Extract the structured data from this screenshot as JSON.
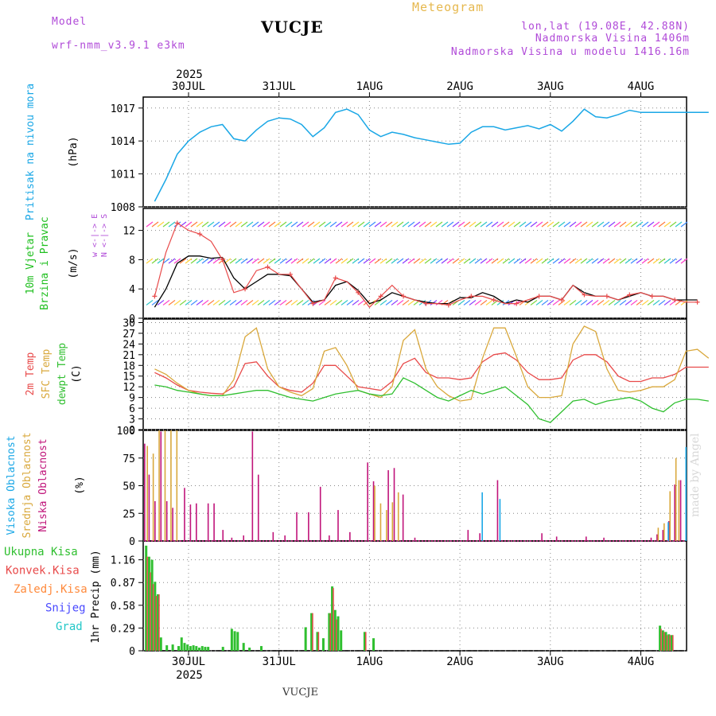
{
  "header": {
    "model_label": "Model",
    "model_name": "wrf-nmm_v3.9.1 e3km",
    "station": "VUCJE",
    "meteogram": "Meteogram",
    "coords": "lon,lat (19.08E, 42.88N)",
    "elevation": "Nadmorska Visina 1406m",
    "model_elevation": "Nadmorska Visina u modelu 1416.16m",
    "footer_station": "VUCJE",
    "watermark": "made by Angel"
  },
  "colors": {
    "pressure": "#1aa7e6",
    "temp2m": "#e84a4a",
    "sfc": "#d9a83c",
    "dewpt": "#2fbf2f",
    "high": "#1aa7e6",
    "mid": "#d9a83c",
    "low": "#c0147a",
    "precip": "#2fbf2f",
    "conv": "#e84a4a"
  },
  "chart_data": [
    {
      "type": "line",
      "title": "Pritisak na nivou mora",
      "ylabel": "(hPa)",
      "ylim": [
        1008,
        1018
      ],
      "yticks": [
        1008,
        1011,
        1014,
        1017
      ],
      "x_top_year": "2025",
      "x_top_labels": [
        "30JUL",
        "31JUL",
        "1AUG",
        "2AUG",
        "3AUG",
        "4AUG"
      ],
      "x_bottom_labels": [
        "30JUL",
        "31JUL",
        "1AUG",
        "2AUG",
        "3AUG",
        "4AUG"
      ],
      "x_bottom_year": "2025",
      "x_hours": [
        0,
        3,
        6,
        9,
        12,
        15,
        18,
        21,
        24,
        27,
        30,
        33,
        36,
        39,
        42,
        45,
        48,
        51,
        54,
        57,
        60,
        63,
        66,
        69,
        72,
        75,
        78,
        81,
        84,
        87,
        90,
        93,
        96,
        99,
        102,
        105,
        108,
        111,
        114,
        117,
        120,
        123,
        126,
        129,
        132,
        135,
        138,
        141,
        144,
        147
      ],
      "series": [
        {
          "name": "MSLP",
          "values": [
            1008.5,
            1010.5,
            1012.8,
            1014.0,
            1014.8,
            1015.3,
            1015.5,
            1014.2,
            1014.0,
            1015.0,
            1015.8,
            1016.1,
            1016.0,
            1015.5,
            1014.4,
            1015.2,
            1016.6,
            1016.9,
            1016.4,
            1015.0,
            1014.4,
            1014.8,
            1014.6,
            1014.3,
            1014.1,
            1013.9,
            1013.7,
            1013.8,
            1014.8,
            1015.3,
            1015.3,
            1015.0,
            1015.2,
            1015.4,
            1015.1,
            1015.5,
            1014.9,
            1015.8,
            1016.9,
            1016.2,
            1016.1,
            1016.4,
            1016.8,
            1016.6,
            1016.6,
            1016.6,
            1016.6,
            1016.6,
            1016.6,
            1016.6
          ]
        }
      ]
    },
    {
      "type": "line",
      "title": "10m Vjetar Brzina i Pravac",
      "ylabel": "(m/s)",
      "ylim": [
        0,
        15
      ],
      "yticks": [
        0,
        4,
        8,
        12
      ],
      "legend": [
        "w  <-|->  E",
        "N <-|-> S"
      ],
      "x_hours": [
        0,
        3,
        6,
        9,
        12,
        15,
        18,
        21,
        24,
        27,
        30,
        33,
        36,
        39,
        42,
        45,
        48,
        51,
        54,
        57,
        60,
        63,
        66,
        69,
        72,
        75,
        78,
        81,
        84,
        87,
        90,
        93,
        96,
        99,
        102,
        105,
        108,
        111,
        114,
        117,
        120,
        123,
        126,
        129,
        132,
        135,
        138,
        141,
        144
      ],
      "series": [
        {
          "name": "speed",
          "values": [
            1.5,
            4.0,
            7.5,
            8.5,
            8.5,
            8.2,
            8.3,
            5.5,
            4.0,
            5.0,
            6.0,
            6.0,
            5.8,
            4.0,
            2.2,
            2.5,
            4.5,
            5.0,
            3.8,
            2.0,
            2.5,
            3.5,
            3.0,
            2.5,
            2.2,
            2.0,
            2.0,
            2.8,
            2.8,
            3.5,
            3.0,
            2.0,
            2.5,
            2.2,
            3.0,
            3.0,
            2.5,
            4.5,
            3.5,
            3.0,
            3.0,
            2.5,
            3.0,
            3.5,
            3.0,
            3.0,
            2.5,
            2.5,
            2.5
          ]
        },
        {
          "name": "gust",
          "values": [
            3.0,
            9.0,
            13.0,
            12.0,
            11.5,
            10.5,
            8.0,
            3.5,
            4.0,
            6.5,
            7.0,
            6.0,
            6.0,
            4.0,
            2.0,
            2.5,
            5.5,
            5.0,
            3.5,
            1.5,
            3.0,
            4.5,
            3.0,
            2.5,
            2.0,
            2.0,
            1.8,
            2.5,
            3.0,
            3.0,
            2.5,
            2.0,
            2.0,
            2.5,
            3.0,
            3.0,
            2.5,
            4.5,
            3.2,
            3.0,
            3.0,
            2.5,
            3.2,
            3.5,
            3.0,
            3.0,
            2.5,
            2.2,
            2.2
          ]
        }
      ]
    },
    {
      "type": "line",
      "title": "2m Temp / SFC Temp / dewpt Temp",
      "ylabel": "(C)",
      "ylim": [
        0,
        31
      ],
      "yticks": [
        0,
        3,
        6,
        9,
        12,
        15,
        18,
        21,
        24,
        27,
        30
      ],
      "x_hours": [
        0,
        3,
        6,
        9,
        12,
        15,
        18,
        21,
        24,
        27,
        30,
        33,
        36,
        39,
        42,
        45,
        48,
        51,
        54,
        57,
        60,
        63,
        66,
        69,
        72,
        75,
        78,
        81,
        84,
        87,
        90,
        93,
        96,
        99,
        102,
        105,
        108,
        111,
        114,
        117,
        120,
        123,
        126,
        129,
        132,
        135,
        138,
        141,
        144,
        147
      ],
      "series": [
        {
          "name": "2m Temp",
          "values": [
            16.0,
            14.5,
            12.5,
            11.0,
            10.5,
            10.2,
            10.0,
            12.0,
            18.5,
            19.0,
            15.0,
            12.0,
            11.0,
            10.5,
            13.0,
            18.0,
            18.0,
            15.0,
            12.0,
            11.5,
            11.0,
            13.5,
            18.5,
            20.0,
            16.0,
            14.5,
            14.5,
            14.0,
            14.5,
            19.0,
            21.0,
            21.5,
            19.5,
            16.0,
            14.0,
            14.0,
            14.5,
            19.5,
            21.0,
            21.0,
            19.0,
            15.0,
            13.5,
            13.5,
            14.5,
            14.5,
            15.5,
            17.5,
            17.5,
            17.5
          ]
        },
        {
          "name": "SFC Temp",
          "values": [
            17.0,
            15.5,
            13.0,
            11.0,
            10.0,
            9.5,
            9.5,
            14.0,
            26.0,
            28.5,
            17.0,
            12.0,
            10.5,
            9.5,
            11.5,
            22.0,
            23.0,
            18.0,
            11.0,
            10.0,
            9.0,
            12.0,
            25.0,
            28.0,
            17.0,
            12.0,
            9.5,
            8.0,
            8.5,
            20.0,
            28.5,
            28.5,
            20.5,
            12.0,
            9.0,
            9.0,
            9.5,
            24.0,
            29.0,
            27.5,
            17.0,
            11.0,
            10.5,
            11.0,
            12.0,
            12.0,
            14.0,
            22.0,
            22.5,
            20.0
          ]
        },
        {
          "name": "dewpt Temp",
          "values": [
            12.5,
            12.0,
            11.0,
            10.5,
            10.0,
            9.5,
            9.5,
            10.0,
            10.5,
            11.0,
            11.0,
            10.0,
            9.0,
            8.5,
            8.0,
            9.0,
            10.0,
            10.5,
            11.0,
            10.0,
            9.5,
            10.0,
            14.5,
            13.0,
            11.0,
            9.0,
            8.0,
            9.5,
            11.0,
            10.0,
            11.0,
            12.0,
            9.5,
            7.0,
            3.0,
            2.0,
            5.0,
            8.0,
            8.5,
            7.0,
            8.0,
            8.5,
            9.0,
            8.0,
            6.0,
            5.0,
            7.5,
            8.5,
            8.5,
            8.0
          ]
        }
      ]
    },
    {
      "type": "bar",
      "title": "Visoka Oblacnost / Srednja Oblacnost / Niska Oblacnost",
      "ylabel": "(%)",
      "ylim": [
        0,
        100
      ],
      "yticks": [
        0,
        25,
        50,
        75,
        100
      ],
      "series": [
        {
          "name": "Niska Oblacnost",
          "points": [
            [
              0.5,
              88
            ],
            [
              2,
              60
            ],
            [
              4,
              36
            ],
            [
              6,
              99
            ],
            [
              8,
              36
            ],
            [
              10,
              30
            ],
            [
              14,
              48
            ],
            [
              16,
              33
            ],
            [
              18,
              34
            ],
            [
              22,
              34
            ],
            [
              24,
              34
            ],
            [
              27,
              10
            ],
            [
              30,
              3
            ],
            [
              34,
              5
            ],
            [
              37,
              99
            ],
            [
              39,
              60
            ],
            [
              44,
              8
            ],
            [
              48,
              5
            ],
            [
              52,
              26
            ],
            [
              56,
              26
            ],
            [
              60,
              49
            ],
            [
              63,
              5
            ],
            [
              66,
              28
            ],
            [
              70,
              8
            ],
            [
              76,
              71
            ],
            [
              78,
              54
            ],
            [
              83,
              64
            ],
            [
              85,
              66
            ],
            [
              88,
              42
            ],
            [
              92,
              3
            ],
            [
              110,
              10
            ],
            [
              114,
              7
            ],
            [
              120,
              55
            ],
            [
              135,
              7
            ],
            [
              140,
              4
            ],
            [
              150,
              4
            ],
            [
              156,
              3
            ],
            [
              172,
              3
            ],
            [
              174,
              6
            ],
            [
              176,
              10
            ],
            [
              178,
              18
            ],
            [
              180,
              51
            ],
            [
              182,
              55
            ]
          ]
        },
        {
          "name": "Srednja Oblacnost",
          "points": [
            [
              1,
              86
            ],
            [
              3,
              79
            ],
            [
              5,
              100
            ],
            [
              7,
              100
            ],
            [
              9,
              100
            ],
            [
              11,
              100
            ],
            [
              78,
              50
            ],
            [
              80,
              34
            ],
            [
              82,
              28
            ],
            [
              84,
              35
            ],
            [
              86,
              44
            ],
            [
              174,
              12
            ],
            [
              176,
              16
            ],
            [
              178,
              45
            ],
            [
              180,
              75
            ],
            [
              181,
              55
            ]
          ]
        },
        {
          "name": "Visoka Oblacnost",
          "points": [
            [
              114,
              44
            ],
            [
              120,
              38
            ],
            [
              177,
              17
            ],
            [
              183,
              85
            ]
          ]
        }
      ]
    },
    {
      "type": "bar",
      "title": "1hr Precip",
      "ylabel": "1hr Precip (mm)",
      "ylim": [
        0,
        1.4
      ],
      "yticks": [
        0,
        0.29,
        0.58,
        0.87,
        1.16
      ],
      "legend": [
        "Ukupna Kisa",
        "Konvek.Kisa",
        "Zaledj.Kisa",
        "Snijeg",
        "Grad"
      ],
      "series": [
        {
          "name": "Ukupna Kisa",
          "points": [
            [
              1,
              1.34
            ],
            [
              2,
              1.2
            ],
            [
              3,
              1.16
            ],
            [
              4,
              0.88
            ],
            [
              5,
              0.72
            ],
            [
              6,
              0.17
            ],
            [
              8,
              0.07
            ],
            [
              10,
              0.08
            ],
            [
              12,
              0.06
            ],
            [
              13,
              0.17
            ],
            [
              14,
              0.1
            ],
            [
              15,
              0.08
            ],
            [
              16,
              0.06
            ],
            [
              17,
              0.07
            ],
            [
              18,
              0.06
            ],
            [
              19,
              0.04
            ],
            [
              20,
              0.06
            ],
            [
              21,
              0.05
            ],
            [
              22,
              0.05
            ],
            [
              27,
              0.05
            ],
            [
              30,
              0.28
            ],
            [
              31,
              0.25
            ],
            [
              32,
              0.24
            ],
            [
              34,
              0.1
            ],
            [
              36,
              0.04
            ],
            [
              40,
              0.06
            ],
            [
              55,
              0.3
            ],
            [
              57,
              0.48
            ],
            [
              59,
              0.24
            ],
            [
              61,
              0.16
            ],
            [
              63,
              0.48
            ],
            [
              64,
              0.82
            ],
            [
              65,
              0.52
            ],
            [
              66,
              0.44
            ],
            [
              67,
              0.26
            ],
            [
              75,
              0.24
            ],
            [
              78,
              0.16
            ],
            [
              175,
              0.32
            ],
            [
              176,
              0.26
            ],
            [
              177,
              0.24
            ],
            [
              178,
              0.21
            ],
            [
              179,
              0.2
            ]
          ]
        },
        {
          "name": "Konvek.Kisa",
          "points": [
            [
              1,
              1.2
            ],
            [
              2,
              1.0
            ],
            [
              3,
              0.85
            ],
            [
              4,
              0.7
            ],
            [
              5,
              0.72
            ],
            [
              57,
              0.48
            ],
            [
              59,
              0.24
            ],
            [
              63,
              0.48
            ],
            [
              64,
              0.8
            ],
            [
              65,
              0.4
            ],
            [
              75,
              0.24
            ],
            [
              175,
              0.28
            ],
            [
              176,
              0.24
            ],
            [
              177,
              0.2
            ],
            [
              178,
              0.2
            ],
            [
              179,
              0.2
            ]
          ]
        }
      ]
    }
  ]
}
